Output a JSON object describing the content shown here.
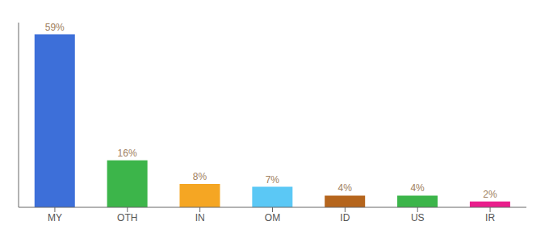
{
  "chart_data": {
    "type": "bar",
    "categories": [
      "MY",
      "OTH",
      "IN",
      "OM",
      "ID",
      "US",
      "IR"
    ],
    "values": [
      59,
      16,
      8,
      7,
      4,
      4,
      2
    ],
    "value_labels": [
      "59%",
      "16%",
      "8%",
      "7%",
      "4%",
      "4%",
      "2%"
    ],
    "colors": [
      "#3d6fd9",
      "#3cb54a",
      "#f5a623",
      "#5bc8f5",
      "#b5651d",
      "#3cb54a",
      "#e91e8c"
    ],
    "ylim": [
      0,
      63
    ],
    "data_labels": true,
    "tick_labels": "x"
  }
}
